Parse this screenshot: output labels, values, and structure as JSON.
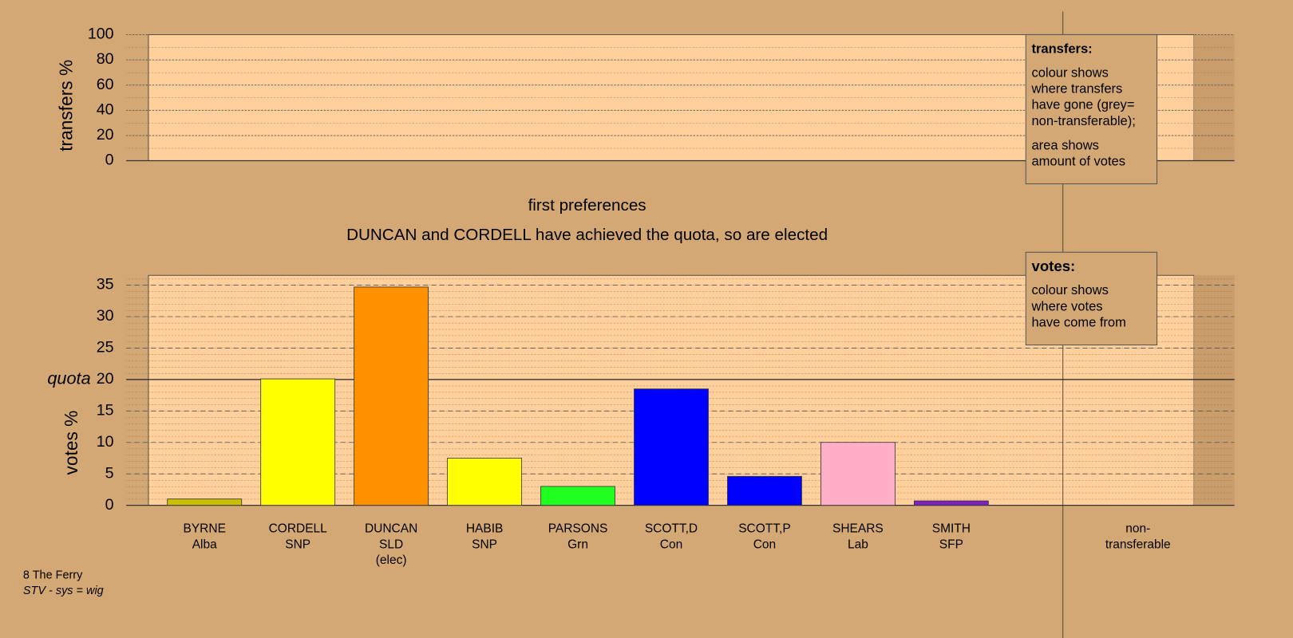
{
  "chart_data": [
    {
      "type": "bar",
      "ylabel": "transfers %",
      "ylim": [
        0,
        100
      ],
      "yticks": [
        0,
        20,
        40,
        60,
        80,
        100
      ],
      "grid": true,
      "note": {
        "title": "transfers:",
        "paragraphs": [
          [
            "colour shows",
            "where transfers",
            "have gone (grey=",
            "non-transferable);"
          ],
          [
            "area shows",
            "amount of votes"
          ]
        ]
      }
    },
    {
      "type": "bar",
      "title": "first preferences",
      "subtitle": "DUNCAN and CORDELL have achieved the quota, so are elected",
      "ylabel": "votes %",
      "ylim": [
        0,
        36.6
      ],
      "yticks": [
        0,
        5,
        10,
        15,
        20,
        25,
        30,
        35
      ],
      "grid": true,
      "quota": 20,
      "quota_label": "quota",
      "categories": [
        [
          "BYRNE",
          "Alba"
        ],
        [
          "CORDELL",
          "SNP"
        ],
        [
          "DUNCAN",
          "SLD",
          "(elec)"
        ],
        [
          "HABIB",
          "SNP"
        ],
        [
          "PARSONS",
          "Grn"
        ],
        [
          "SCOTT,D",
          "Con"
        ],
        [
          "SCOTT,P",
          "Con"
        ],
        [
          "SHEARS",
          "Lab"
        ],
        [
          "SMITH",
          "SFP"
        ],
        [
          "non-",
          "transferable"
        ]
      ],
      "values": [
        1.0,
        20.1,
        34.7,
        7.5,
        3.0,
        18.5,
        4.6,
        10.0,
        0.7,
        0
      ],
      "colors": [
        "#c8c000",
        "#ffff00",
        "#ff9000",
        "#ffff00",
        "#20ff20",
        "#0000ff",
        "#0000ff",
        "#ffb0c8",
        "#8020c0",
        "#999999"
      ],
      "note": {
        "title": "votes:",
        "paragraphs": [
          [
            "colour shows",
            "where votes",
            "have come from"
          ]
        ]
      }
    }
  ],
  "footer": [
    "8 The Ferry",
    "STV - sys = wig"
  ]
}
